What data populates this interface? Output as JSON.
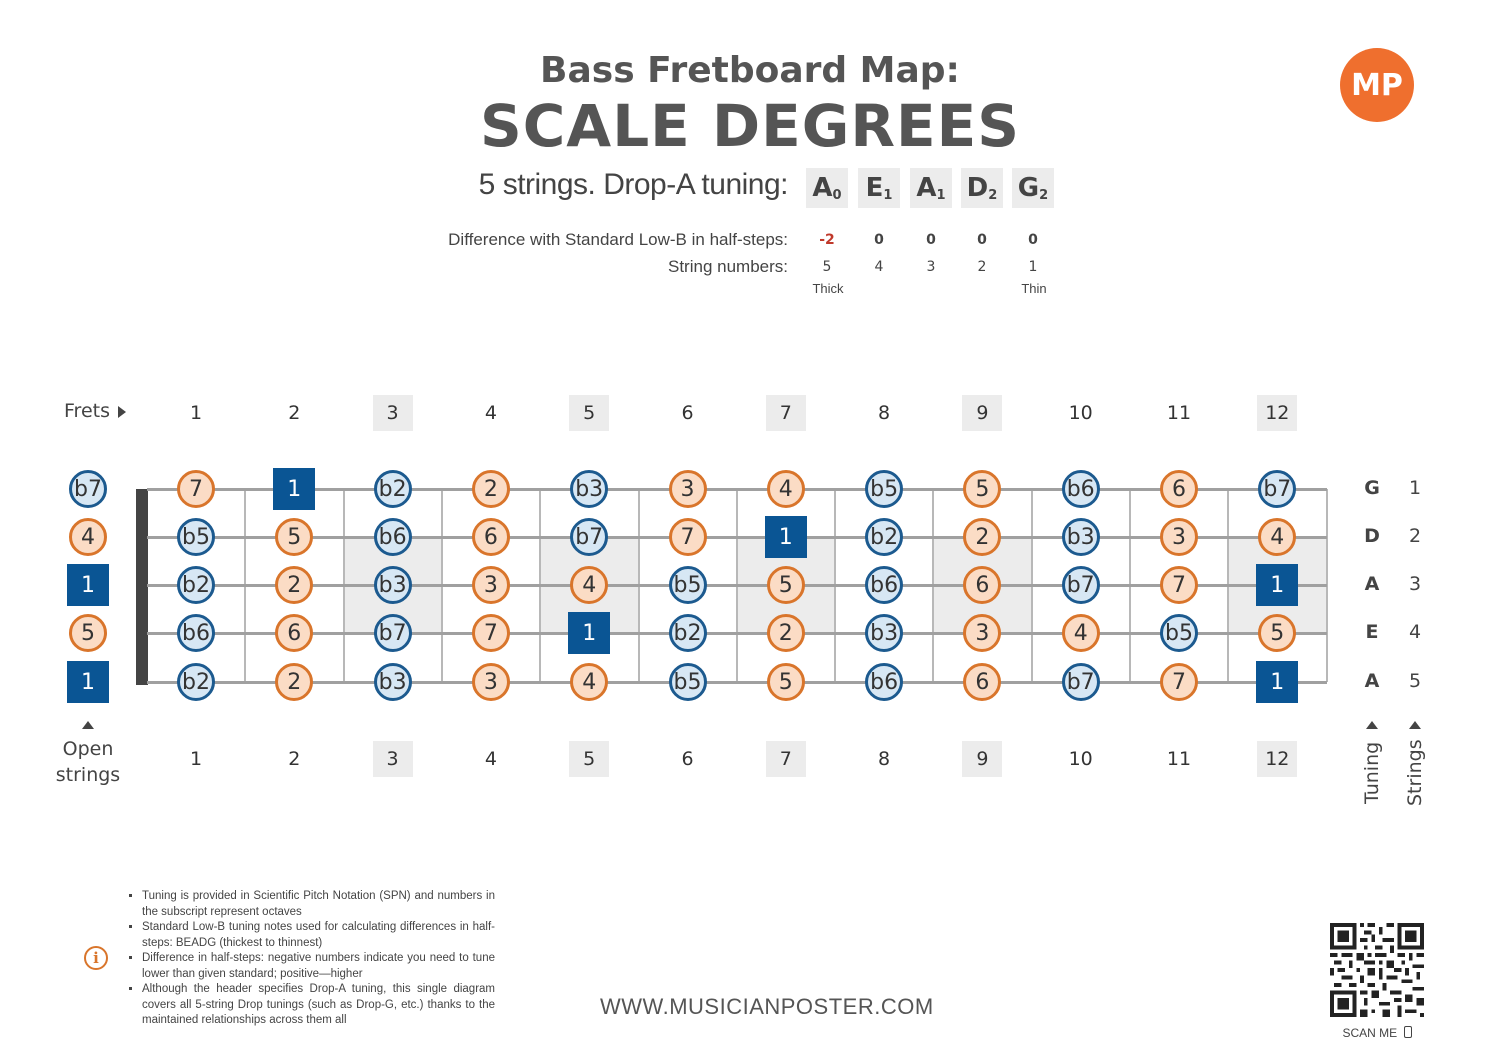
{
  "header": {
    "title_line1": "Bass Fretboard Map:",
    "title_line2": "SCALE DEGREES",
    "logo_text": "MP"
  },
  "tuning": {
    "label": "5 strings. Drop-A tuning:",
    "notes": [
      {
        "note": "A",
        "octave": "0"
      },
      {
        "note": "E",
        "octave": "1"
      },
      {
        "note": "A",
        "octave": "1"
      },
      {
        "note": "D",
        "octave": "2"
      },
      {
        "note": "G",
        "octave": "2"
      }
    ],
    "diff_label": "Difference with Standard Low-B in half-steps:",
    "diff_values": [
      "-2",
      "0",
      "0",
      "0",
      "0"
    ],
    "string_numbers_label": "String numbers:",
    "string_numbers": [
      "5",
      "4",
      "3",
      "2",
      "1"
    ],
    "thick_label": "Thick",
    "thin_label": "Thin"
  },
  "fretboard": {
    "frets_label": "Frets",
    "fret_numbers": [
      "1",
      "2",
      "3",
      "4",
      "5",
      "6",
      "7",
      "8",
      "9",
      "10",
      "11",
      "12"
    ],
    "marked_frets": [
      3,
      5,
      7,
      9,
      12
    ],
    "open_label_1": "Open",
    "open_label_2": "strings",
    "tuning_axis_label": "Tuning",
    "strings_axis_label": "Strings",
    "strings": [
      {
        "tuning": "G",
        "number": "1",
        "open": {
          "d": "b7",
          "t": "b"
        },
        "frets": [
          {
            "d": "7",
            "t": "o"
          },
          {
            "d": "1",
            "t": "r"
          },
          {
            "d": "b2",
            "t": "b"
          },
          {
            "d": "2",
            "t": "o"
          },
          {
            "d": "b3",
            "t": "b"
          },
          {
            "d": "3",
            "t": "o"
          },
          {
            "d": "4",
            "t": "o"
          },
          {
            "d": "b5",
            "t": "b"
          },
          {
            "d": "5",
            "t": "o"
          },
          {
            "d": "b6",
            "t": "b"
          },
          {
            "d": "6",
            "t": "o"
          },
          {
            "d": "b7",
            "t": "b"
          }
        ]
      },
      {
        "tuning": "D",
        "number": "2",
        "open": {
          "d": "4",
          "t": "o"
        },
        "frets": [
          {
            "d": "b5",
            "t": "b"
          },
          {
            "d": "5",
            "t": "o"
          },
          {
            "d": "b6",
            "t": "b"
          },
          {
            "d": "6",
            "t": "o"
          },
          {
            "d": "b7",
            "t": "b"
          },
          {
            "d": "7",
            "t": "o"
          },
          {
            "d": "1",
            "t": "r"
          },
          {
            "d": "b2",
            "t": "b"
          },
          {
            "d": "2",
            "t": "o"
          },
          {
            "d": "b3",
            "t": "b"
          },
          {
            "d": "3",
            "t": "o"
          },
          {
            "d": "4",
            "t": "o"
          }
        ]
      },
      {
        "tuning": "A",
        "number": "3",
        "open": {
          "d": "1",
          "t": "r"
        },
        "frets": [
          {
            "d": "b2",
            "t": "b"
          },
          {
            "d": "2",
            "t": "o"
          },
          {
            "d": "b3",
            "t": "b"
          },
          {
            "d": "3",
            "t": "o"
          },
          {
            "d": "4",
            "t": "o"
          },
          {
            "d": "b5",
            "t": "b"
          },
          {
            "d": "5",
            "t": "o"
          },
          {
            "d": "b6",
            "t": "b"
          },
          {
            "d": "6",
            "t": "o"
          },
          {
            "d": "b7",
            "t": "b"
          },
          {
            "d": "7",
            "t": "o"
          },
          {
            "d": "1",
            "t": "r"
          }
        ]
      },
      {
        "tuning": "E",
        "number": "4",
        "open": {
          "d": "5",
          "t": "o"
        },
        "frets": [
          {
            "d": "b6",
            "t": "b"
          },
          {
            "d": "6",
            "t": "o"
          },
          {
            "d": "b7",
            "t": "b"
          },
          {
            "d": "7",
            "t": "o"
          },
          {
            "d": "1",
            "t": "r"
          },
          {
            "d": "b2",
            "t": "b"
          },
          {
            "d": "2",
            "t": "o"
          },
          {
            "d": "b3",
            "t": "b"
          },
          {
            "d": "3",
            "t": "o"
          },
          {
            "d": "4",
            "t": "o"
          },
          {
            "d": "b5",
            "t": "b"
          },
          {
            "d": "5",
            "t": "o"
          }
        ]
      },
      {
        "tuning": "A",
        "number": "5",
        "open": {
          "d": "1",
          "t": "r"
        },
        "frets": [
          {
            "d": "b2",
            "t": "b"
          },
          {
            "d": "2",
            "t": "o"
          },
          {
            "d": "b3",
            "t": "b"
          },
          {
            "d": "3",
            "t": "o"
          },
          {
            "d": "4",
            "t": "o"
          },
          {
            "d": "b5",
            "t": "b"
          },
          {
            "d": "5",
            "t": "o"
          },
          {
            "d": "b6",
            "t": "b"
          },
          {
            "d": "6",
            "t": "o"
          },
          {
            "d": "b7",
            "t": "b"
          },
          {
            "d": "7",
            "t": "o"
          },
          {
            "d": "1",
            "t": "r"
          }
        ]
      }
    ]
  },
  "footnotes": [
    "Tuning is provided in Scientific Pitch Notation (SPN) and numbers in the subscript represent octaves",
    "Standard Low-B tuning notes used for calculating differences in half-steps: BEADG (thickest to thinnest)",
    "Difference in half-steps: negative numbers indicate you need to tune lower than given standard; positive—higher",
    "Although the header specifies Drop-A tuning, this single diagram covers all 5-string Drop tunings (such as Drop-G, etc.) thanks to the maintained relationships across them all"
  ],
  "info_icon": "info-icon",
  "website": "WWW.MUSICIANPOSTER.COM",
  "scan_me": "SCAN ME",
  "colors": {
    "orange": "#d9752b",
    "orange_fill": "#fbdcc5",
    "blue": "#1c5a8f",
    "blue_fill": "#d7e7f4",
    "root": "#0a5594",
    "logo": "#ef6f2e"
  }
}
